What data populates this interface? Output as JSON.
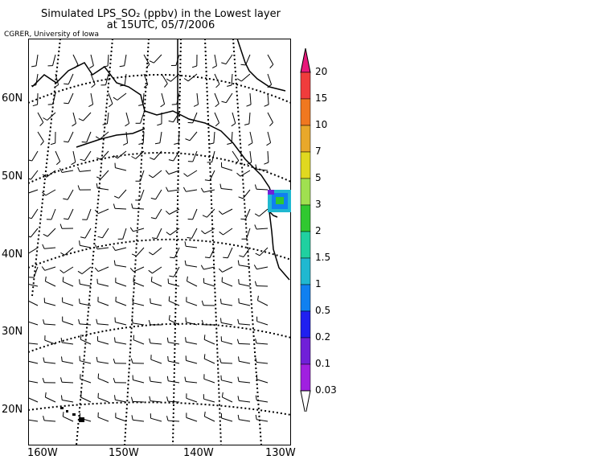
{
  "title": {
    "line1": "Simulated LPS_SO₂ (ppbv) in the Lowest layer",
    "line2": "at 15UTC, 05/7/2006"
  },
  "credit": "CGRER, University of Iowa",
  "map": {
    "lat_labels": [
      "60N",
      "50N",
      "40N",
      "30N",
      "20N"
    ],
    "lon_labels": [
      "160W",
      "150W",
      "140W",
      "130W"
    ],
    "overlay": "wind-barbs",
    "graticule_style": "dotted",
    "plume_region": "Pacific Northwest coast"
  },
  "colorbar": {
    "labels": [
      "20",
      "15",
      "10",
      "7",
      "5",
      "3",
      "2",
      "1.5",
      "1",
      "0.5",
      "0.2",
      "0.1",
      "0.03"
    ],
    "colors": [
      "#e8187a",
      "#f03c3c",
      "#f07820",
      "#e8a82a",
      "#e0d820",
      "#a0e050",
      "#30c830",
      "#20d0a0",
      "#20b8d0",
      "#1080f0",
      "#2020f0",
      "#7020d8",
      "#a020e0"
    ],
    "top_cap_color": "#e8187a",
    "bottom_cap_color": "#ffffff"
  },
  "chart_data": {
    "type": "heatmap",
    "title": "Simulated LPS_SO₂ (ppbv) in the Lowest layer at 15UTC, 05/7/2006",
    "xlabel": "",
    "ylabel": "",
    "x_ticks": [
      "160W",
      "150W",
      "140W",
      "130W"
    ],
    "y_ticks": [
      "20N",
      "30N",
      "40N",
      "50N",
      "60N"
    ],
    "levels": [
      0.03,
      0.1,
      0.2,
      0.5,
      1,
      1.5,
      2,
      3,
      5,
      7,
      10,
      15,
      20
    ],
    "units": "ppbv"
  }
}
